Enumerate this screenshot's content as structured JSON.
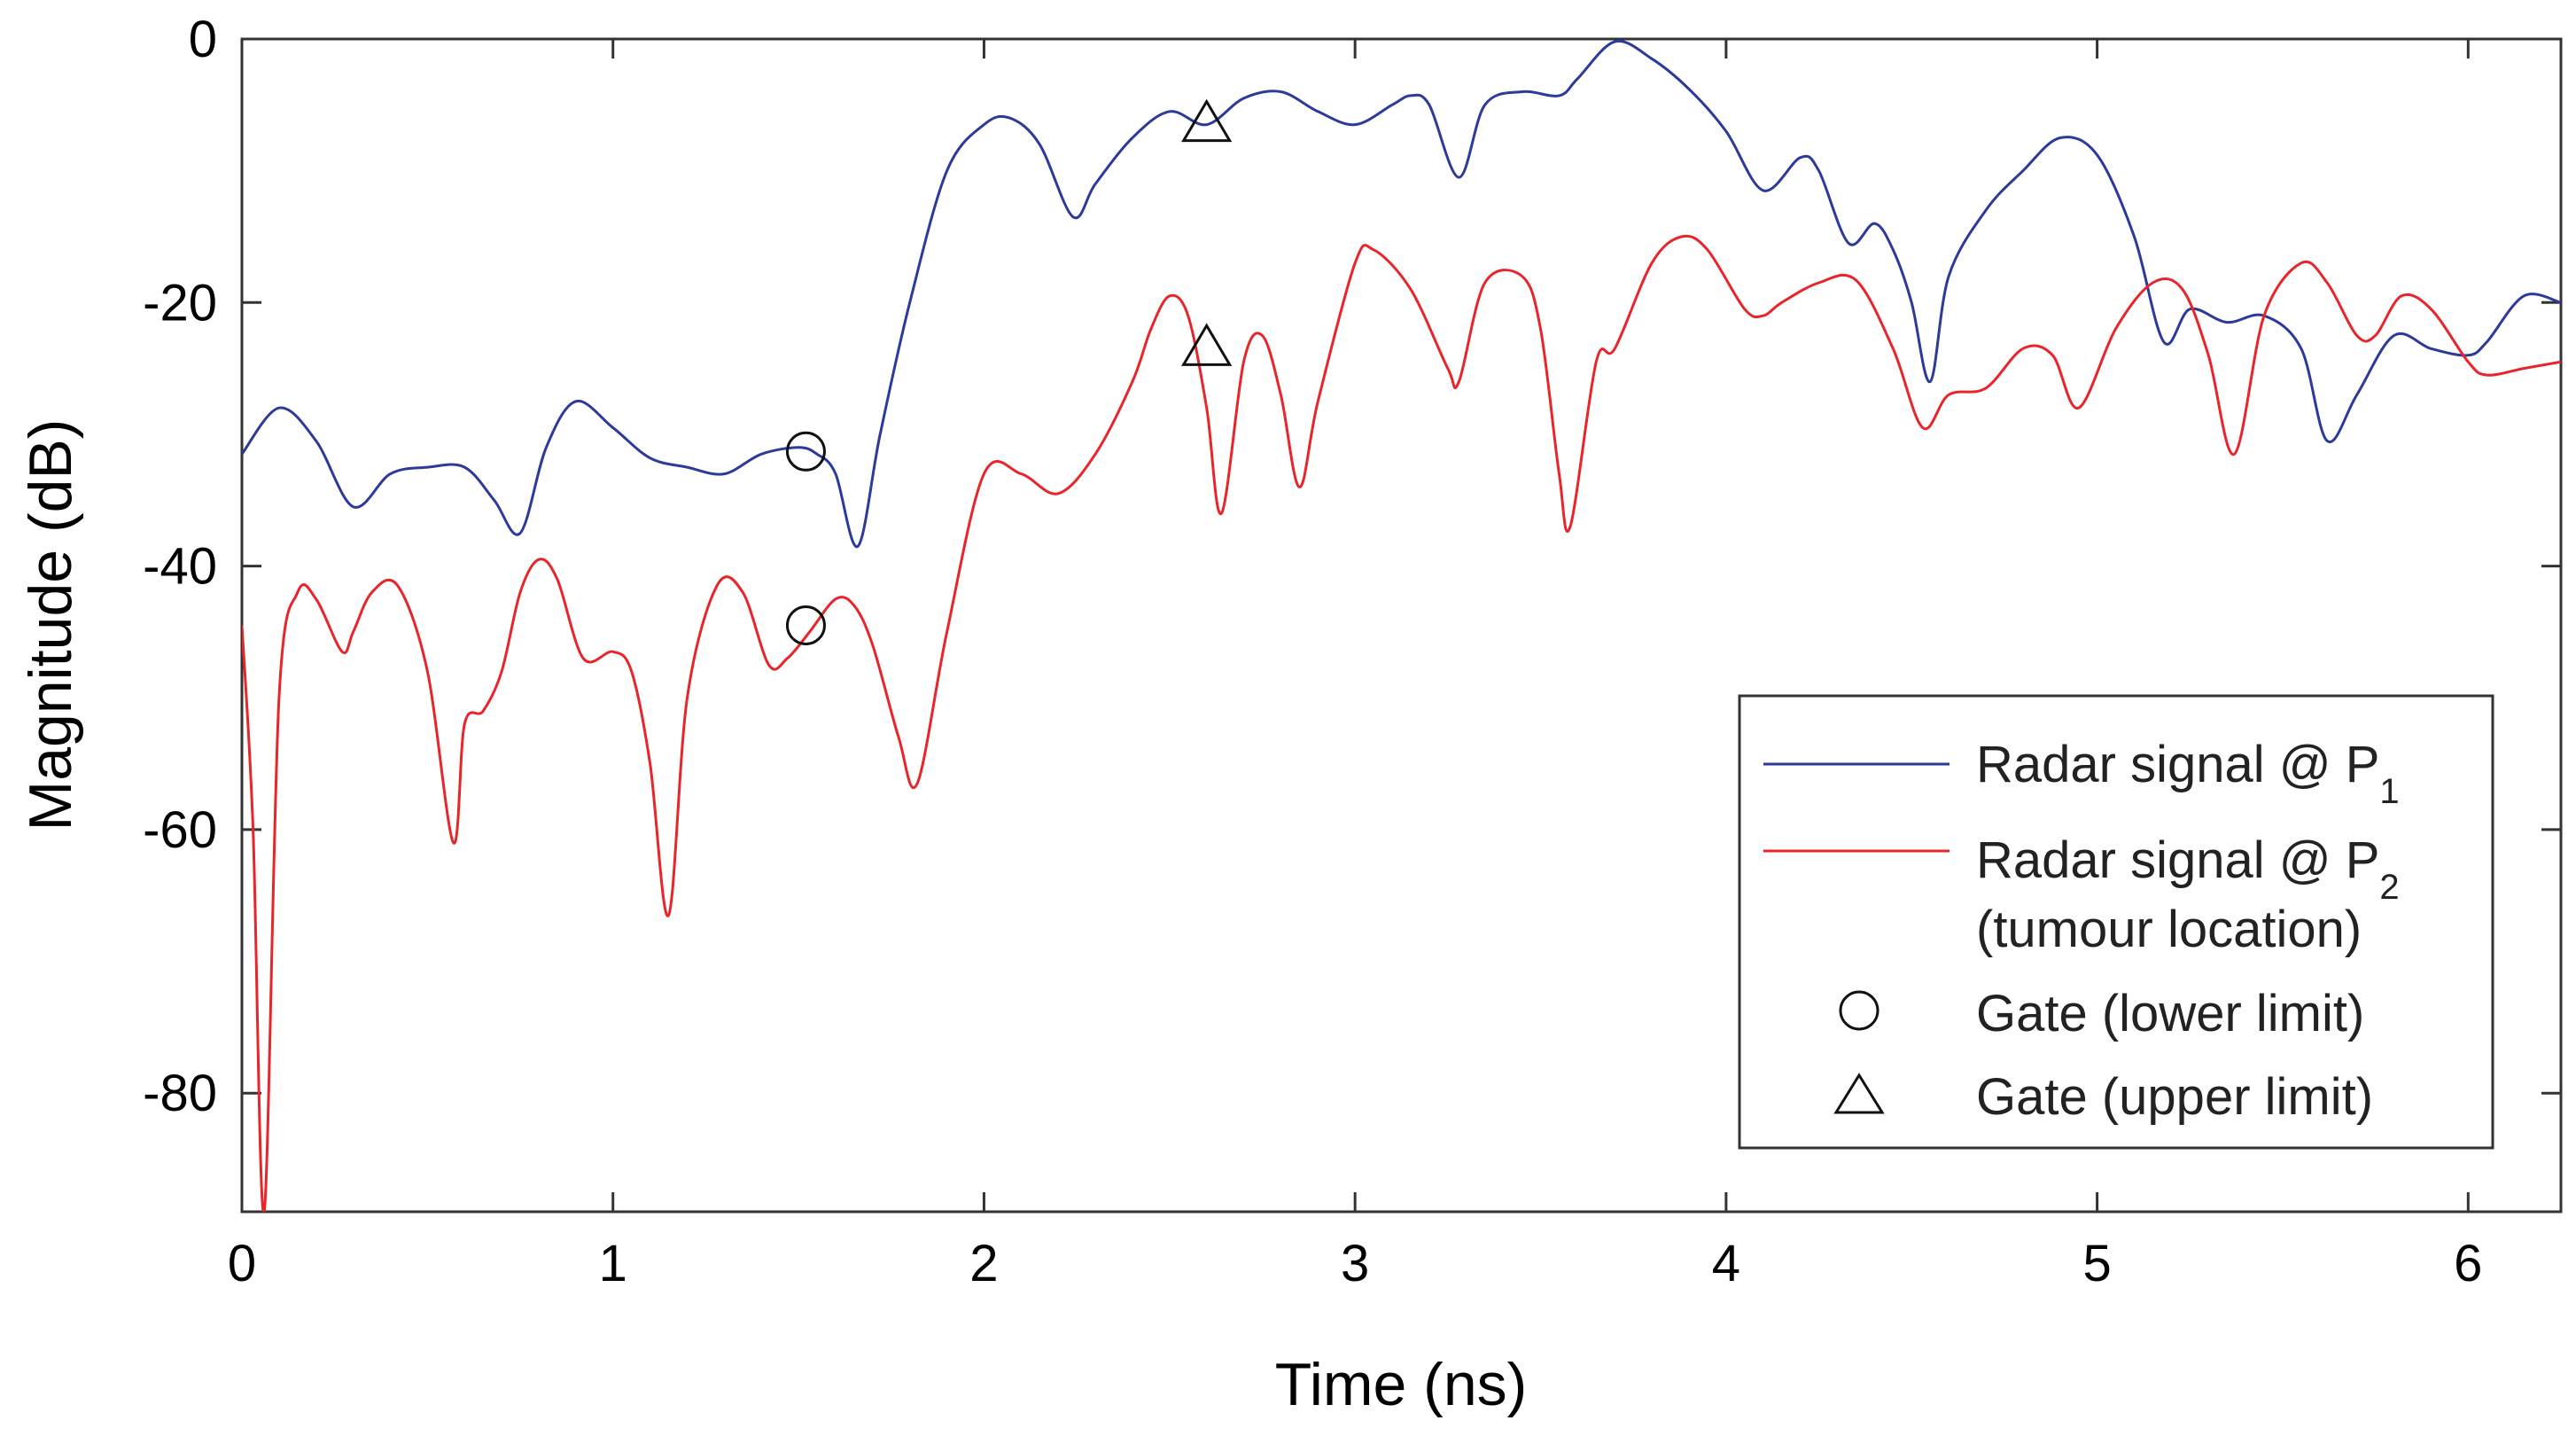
{
  "chart_data": {
    "type": "line",
    "title": "",
    "xlabel": "Time (ns)",
    "ylabel": "Magnitude (dB)",
    "xlim": [
      0,
      6.25
    ],
    "ylim": [
      -89,
      0
    ],
    "xticks": [
      0,
      1,
      2,
      3,
      4,
      5,
      6
    ],
    "yticks": [
      0,
      -20,
      -40,
      -60,
      -80
    ],
    "xtick_labels": [
      "0",
      "1",
      "2",
      "3",
      "4",
      "5",
      "6"
    ],
    "ytick_labels": [
      "0",
      "-20",
      "-40",
      "-60",
      "-80"
    ],
    "grid": false,
    "legend_position": "bottom-right",
    "series": [
      {
        "name": "Radar signal @ P1",
        "color": "#2b3a9b",
        "x": [
          0,
          0.1,
          0.2,
          0.3,
          0.4,
          0.5,
          0.6,
          0.68,
          0.75,
          0.82,
          0.9,
          1.0,
          1.1,
          1.2,
          1.3,
          1.4,
          1.5,
          1.55,
          1.6,
          1.66,
          1.72,
          1.8,
          1.9,
          2.0,
          2.07,
          2.15,
          2.24,
          2.3,
          2.4,
          2.5,
          2.6,
          2.7,
          2.8,
          2.9,
          3.0,
          3.1,
          3.15,
          3.2,
          3.28,
          3.35,
          3.45,
          3.55,
          3.6,
          3.7,
          3.8,
          3.9,
          4.0,
          4.1,
          4.2,
          4.25,
          4.33,
          4.4,
          4.45,
          4.5,
          4.55,
          4.6,
          4.7,
          4.8,
          4.9,
          5.0,
          5.1,
          5.18,
          5.25,
          5.35,
          5.45,
          5.55,
          5.62,
          5.7,
          5.8,
          5.9,
          6.0,
          6.05,
          6.15,
          6.25
        ],
        "y": [
          -31.5,
          -28,
          -30.5,
          -35.5,
          -33,
          -32.5,
          -32.5,
          -35,
          -37.5,
          -31,
          -27.5,
          -29.5,
          -31.8,
          -32.5,
          -33,
          -31.5,
          -31,
          -31.5,
          -33,
          -38.5,
          -30,
          -20,
          -10,
          -6.5,
          -6,
          -8,
          -13.5,
          -11,
          -7.5,
          -5.5,
          -6.5,
          -4.5,
          -4,
          -5.5,
          -6.5,
          -5,
          -4.3,
          -5,
          -10.5,
          -5,
          -4,
          -4.3,
          -3,
          -0.2,
          -1.5,
          -3.8,
          -7,
          -11.5,
          -9,
          -10,
          -15.5,
          -14,
          -16,
          -20,
          -26,
          -18,
          -13,
          -10,
          -7.5,
          -8.8,
          -15,
          -23,
          -20.5,
          -21.5,
          -21,
          -23.5,
          -30.5,
          -27,
          -22.5,
          -23.5,
          -24,
          -23,
          -19.5,
          -20
        ]
      },
      {
        "name": "Radar signal @ P2 (tumour location)",
        "color": "#e8252a",
        "x": [
          0,
          0.03,
          0.06,
          0.1,
          0.15,
          0.2,
          0.27,
          0.3,
          0.35,
          0.42,
          0.5,
          0.57,
          0.6,
          0.65,
          0.7,
          0.75,
          0.8,
          0.85,
          0.92,
          1.0,
          1.05,
          1.1,
          1.15,
          1.2,
          1.28,
          1.35,
          1.42,
          1.47,
          1.53,
          1.6,
          1.65,
          1.7,
          1.77,
          1.82,
          1.9,
          2.0,
          2.1,
          2.2,
          2.3,
          2.4,
          2.45,
          2.5,
          2.55,
          2.6,
          2.64,
          2.7,
          2.75,
          2.8,
          2.85,
          2.9,
          3.0,
          3.05,
          3.15,
          3.25,
          3.28,
          3.35,
          3.45,
          3.5,
          3.55,
          3.58,
          3.65,
          3.7,
          3.8,
          3.88,
          3.95,
          4.05,
          4.1,
          4.15,
          4.25,
          4.35,
          4.45,
          4.53,
          4.6,
          4.7,
          4.8,
          4.88,
          4.95,
          5.05,
          5.15,
          5.23,
          5.3,
          5.37,
          5.45,
          5.55,
          5.62,
          5.7,
          5.75,
          5.82,
          5.9,
          6.0,
          6.05,
          6.15,
          6.25
        ],
        "y": [
          -44.5,
          -60,
          -89,
          -50,
          -42,
          -42.5,
          -46.5,
          -45,
          -42,
          -41.5,
          -48,
          -61,
          -52,
          -51,
          -48,
          -42,
          -39.5,
          -41,
          -47,
          -46.5,
          -48,
          -55,
          -66.5,
          -50,
          -41.5,
          -42,
          -47.5,
          -47,
          -45,
          -42.5,
          -43,
          -46,
          -53,
          -56.5,
          -45,
          -33,
          -33,
          -34.5,
          -31.5,
          -26,
          -22,
          -19.5,
          -21,
          -28,
          -36,
          -24.5,
          -22.5,
          -27,
          -34,
          -27.5,
          -17,
          -16,
          -19,
          -25,
          -26,
          -18.5,
          -18,
          -22,
          -33,
          -37,
          -24.5,
          -23.5,
          -17,
          -15,
          -16,
          -20.5,
          -21,
          -20,
          -18.5,
          -18.3,
          -23.5,
          -29.5,
          -27,
          -26.5,
          -23.5,
          -24,
          -28,
          -22,
          -18.5,
          -19,
          -24,
          -31.5,
          -21,
          -17,
          -18.5,
          -22.5,
          -22.5,
          -19.5,
          -20.5,
          -24.5,
          -25.5,
          -25,
          -24.5
        ]
      }
    ],
    "markers": [
      {
        "name": "Gate (lower limit)",
        "symbol": "circle",
        "points": [
          {
            "x": 1.52,
            "y": -31.3
          },
          {
            "x": 1.52,
            "y": -44.5
          }
        ]
      },
      {
        "name": "Gate (upper limit)",
        "symbol": "triangle",
        "points": [
          {
            "x": 2.6,
            "y": -6.5
          },
          {
            "x": 2.6,
            "y": -23.5
          }
        ]
      }
    ],
    "legend": {
      "entries": [
        {
          "text": "Radar signal @ P",
          "sub": "1"
        },
        {
          "text": "Radar signal @ P",
          "sub": "2"
        },
        {
          "text": "(tumour location)"
        },
        {
          "text": "Gate (lower limit)"
        },
        {
          "text": "Gate (upper limit)"
        }
      ]
    }
  }
}
